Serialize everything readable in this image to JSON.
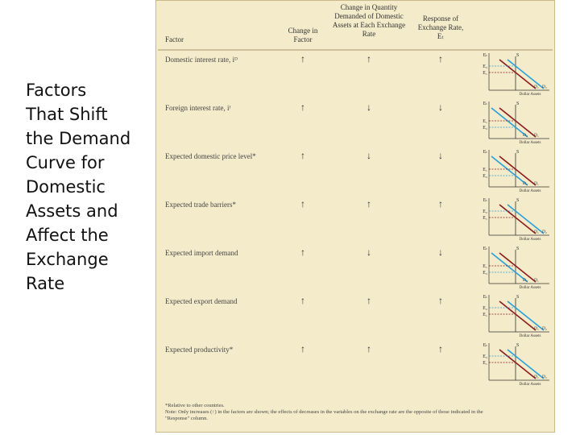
{
  "slide": {
    "title_lines": [
      "Factors",
      "That Shift",
      "the Demand",
      "Curve for",
      "Domestic",
      "Assets and",
      "Affect the",
      "Exchange",
      "Rate"
    ]
  },
  "table": {
    "headers": [
      "Factor",
      "Change in Factor",
      "Change in Quantity Demanded of Domestic Assets at Each Exchange Rate",
      "Response of Exchange Rate, Eₜ"
    ],
    "rows": [
      {
        "factor": "Domestic interest rate, iᴰ",
        "change": "↑",
        "quantity": "↑",
        "response": "↑",
        "graph": {
          "axis": "Eₜ",
          "levels": [
            "E₂",
            "E₁"
          ],
          "supply": "S",
          "demand": [
            "D₁",
            "D₂"
          ],
          "x_axis": "Dollar Assets"
        }
      },
      {
        "factor": "Foreign interest rate, iᶠ",
        "change": "↑",
        "quantity": "↓",
        "response": "↓",
        "graph": {
          "axis": "Eₜ",
          "levels": [
            "E₁",
            "E₂"
          ],
          "supply": "S",
          "demand": [
            "D₁",
            "D₂"
          ],
          "x_axis": "Dollar Assets"
        }
      },
      {
        "factor": "Expected domestic price level*",
        "change": "↑",
        "quantity": "↓",
        "response": "↓",
        "graph": {
          "axis": "Eₜ",
          "levels": [
            "E₁",
            "E₂"
          ],
          "supply": "S",
          "demand": [
            "D₁",
            "D₂"
          ],
          "x_axis": "Dollar Assets"
        }
      },
      {
        "factor": "Expected trade barriers*",
        "change": "↑",
        "quantity": "↑",
        "response": "↑",
        "graph": {
          "axis": "Eₜ",
          "levels": [
            "E₂",
            "E₁"
          ],
          "supply": "S",
          "demand": [
            "D₁",
            "D₂"
          ],
          "x_axis": "Dollar Assets"
        }
      },
      {
        "factor": "Expected import demand",
        "change": "↑",
        "quantity": "↓",
        "response": "↓",
        "graph": {
          "axis": "Eₜ",
          "levels": [
            "E₁",
            "E₂"
          ],
          "supply": "S",
          "demand": [
            "D₁",
            "D₂"
          ],
          "x_axis": "Dollar Assets"
        }
      },
      {
        "factor": "Expected export demand",
        "change": "↑",
        "quantity": "↑",
        "response": "↑",
        "graph": {
          "axis": "Eₜ",
          "levels": [
            "E₂",
            "E₁"
          ],
          "supply": "S",
          "demand": [
            "D₁",
            "D₂"
          ],
          "x_axis": "Dollar Assets"
        }
      },
      {
        "factor": "Expected productivity*",
        "change": "↑",
        "quantity": "↑",
        "response": "↑",
        "graph": {
          "axis": "Eₜ",
          "levels": [
            "E₂",
            "E₁"
          ],
          "supply": "S",
          "demand": [
            "D₁",
            "D₂"
          ],
          "x_axis": "Dollar Assets"
        }
      }
    ],
    "footnotes": [
      "*Relative to other countries.",
      "Note: Only increases (↑) in the factors are shown; the effects of decreases in the variables on the exchange rate are the opposite of those indicated in the \"Response\" column."
    ]
  }
}
